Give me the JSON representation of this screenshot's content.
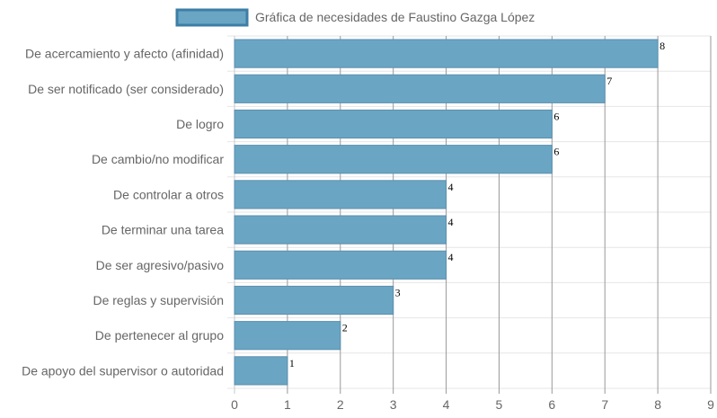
{
  "chart_data": {
    "type": "bar",
    "orientation": "horizontal",
    "title": "",
    "xlabel": "",
    "ylabel": "",
    "categories": [
      "De acercamiento y afecto (afinidad)",
      "De ser notificado (ser considerado)",
      "De logro",
      "De cambio/no modificar",
      "De controlar a otros",
      "De terminar una tarea",
      "De ser agresivo/pasivo",
      "De reglas y supervisión",
      "De pertenecer al grupo",
      "De apoyo del supervisor o autoridad"
    ],
    "series": [
      {
        "name": "Gráfica de necesidades de Faustino Gazga López",
        "values": [
          8,
          7,
          6,
          6,
          4,
          4,
          4,
          3,
          2,
          1
        ]
      }
    ],
    "xlim": [
      0,
      9
    ],
    "xticks": [
      "0",
      "1",
      "2",
      "3",
      "4",
      "5",
      "6",
      "7",
      "8",
      "9"
    ],
    "data_labels": true,
    "grid": true,
    "legend_position": "top",
    "colors": {
      "bar_fill": "#6aa5c4",
      "bar_stroke": "#5b8fae",
      "grid": "#e6e6e6",
      "major_grid": "#999999",
      "axis": "#c8c8c8",
      "text": "#666666"
    }
  }
}
